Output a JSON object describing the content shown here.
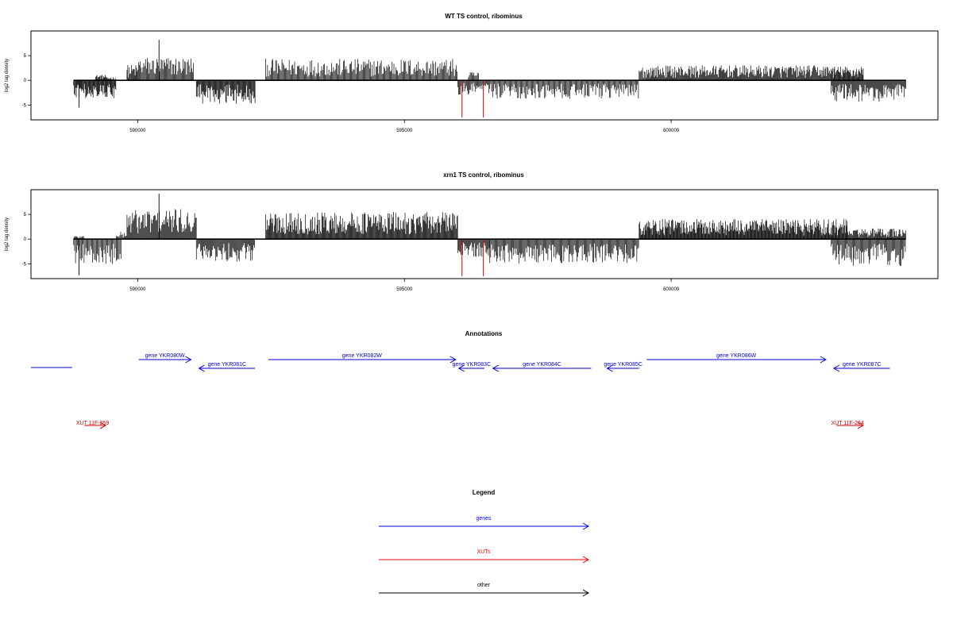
{
  "chart_data": [
    {
      "type": "bar",
      "title": "WT TS control, ribominus",
      "ylabel": "log2 tag density",
      "xlim": [
        588000,
        605000
      ],
      "ylim": [
        -8,
        10
      ],
      "xticks": [
        590000,
        595000,
        600000
      ],
      "yticks": [
        -5,
        0,
        5
      ],
      "x_tick_labels": [
        "590000",
        "595000",
        "600000"
      ],
      "y_tick_labels": [
        "-5",
        "0",
        "5"
      ],
      "baseline": {
        "start": 588800,
        "end": 604400
      },
      "series": [
        {
          "strand": "plus",
          "color": "#000000",
          "values_sampled": [
            [
              588800,
              589000,
              0
            ],
            [
              589200,
              589400,
              0.8
            ],
            [
              589400,
              589600,
              0.5
            ],
            [
              589800,
              590000,
              2.2
            ],
            [
              590000,
              591050,
              3.3
            ],
            [
              592400,
              596000,
              3.0
            ],
            [
              596200,
              596400,
              1.2
            ],
            [
              599400,
              599600,
              2.0
            ],
            [
              599600,
              603000,
              2.1
            ],
            [
              603000,
              603600,
              2.0
            ]
          ]
        },
        {
          "strand": "minus",
          "color": "#000000",
          "values_sampled": [
            [
              588800,
              589600,
              -2.5
            ],
            [
              591100,
              592200,
              -3.3
            ],
            [
              596000,
              596600,
              -2.0
            ],
            [
              596600,
              599400,
              -2.6
            ],
            [
              603000,
              604400,
              -3.0
            ]
          ]
        },
        {
          "strand": "highlight",
          "color": "#cc0000",
          "bars": [
            {
              "x": 596080,
              "y": -7.5
            },
            {
              "x": 596480,
              "y": -7.5
            }
          ]
        }
      ],
      "peaks": [
        {
          "x": 590400,
          "y": 8.2
        },
        {
          "x": 588900,
          "y": -5.5
        }
      ]
    },
    {
      "type": "bar",
      "title": "xrn1 TS control, ribominus",
      "ylabel": "log2 tag density",
      "xlim": [
        588000,
        605000
      ],
      "ylim": [
        -8,
        10
      ],
      "xticks": [
        590000,
        595000,
        600000
      ],
      "yticks": [
        -5,
        0,
        5
      ],
      "x_tick_labels": [
        "590000",
        "595000",
        "600000"
      ],
      "y_tick_labels": [
        "-5",
        "0",
        "5"
      ],
      "baseline": {
        "start": 588800,
        "end": 604400
      },
      "series": [
        {
          "strand": "plus",
          "color": "#000000",
          "values_sampled": [
            [
              588800,
              589000,
              0.5
            ],
            [
              589600,
              589800,
              1.0
            ],
            [
              589800,
              591100,
              4.2
            ],
            [
              592400,
              596000,
              3.8
            ],
            [
              599400,
              603300,
              2.8
            ],
            [
              603300,
              604400,
              1.5
            ]
          ]
        },
        {
          "strand": "minus",
          "color": "#000000",
          "values_sampled": [
            [
              588800,
              589700,
              -3.5
            ],
            [
              591100,
              592200,
              -3.2
            ],
            [
              596000,
              596600,
              -2.5
            ],
            [
              596600,
              599400,
              -3.4
            ],
            [
              603000,
              604400,
              -3.8
            ]
          ]
        },
        {
          "strand": "highlight",
          "color": "#cc0000",
          "bars": [
            {
              "x": 596080,
              "y": -7.5
            },
            {
              "x": 596480,
              "y": -7.5
            }
          ]
        }
      ],
      "peaks": [
        {
          "x": 590400,
          "y": 9.2
        },
        {
          "x": 588900,
          "y": -7.3
        }
      ]
    }
  ],
  "annotations": {
    "title": "Annotations",
    "genes": [
      {
        "label": "gene YKR080W",
        "strand": "+",
        "start": 590020,
        "end": 591000,
        "row": 1
      },
      {
        "label": "gene YKR081C",
        "strand": "-",
        "start": 591150,
        "end": 592200,
        "row": 2
      },
      {
        "label": "gene YKR082W",
        "strand": "+",
        "start": 592450,
        "end": 595960,
        "row": 1
      },
      {
        "label": "gene YKR083C",
        "strand": "-",
        "start": 596020,
        "end": 596500,
        "row": 2
      },
      {
        "label": "gene YKR084C",
        "strand": "-",
        "start": 596660,
        "end": 598500,
        "row": 2
      },
      {
        "label": "gene YKR085C",
        "strand": "-",
        "start": 598800,
        "end": 599400,
        "row": 2
      },
      {
        "label": "gene YKR086W",
        "strand": "+",
        "start": 599540,
        "end": 602900,
        "row": 1
      },
      {
        "label": "gene YKR087C",
        "strand": "-",
        "start": 603050,
        "end": 604100,
        "row": 2
      }
    ],
    "partial_gene_line": {
      "start": 588000,
      "end": 588770
    },
    "xuts": [
      {
        "label": "XUT 11F-259",
        "strand": "+",
        "start": 589000,
        "end": 589400
      },
      {
        "label": "XUT 11F-264",
        "strand": "+",
        "start": 603100,
        "end": 603600
      }
    ],
    "colors": {
      "gene": "#0000cc",
      "xut": "#cc0000"
    }
  },
  "legend": {
    "title": "Legend",
    "items": [
      {
        "label": "genes",
        "color": "#0000ff"
      },
      {
        "label": "XUTs",
        "color": "#ff0000"
      },
      {
        "label": "other",
        "color": "#000000"
      }
    ]
  }
}
